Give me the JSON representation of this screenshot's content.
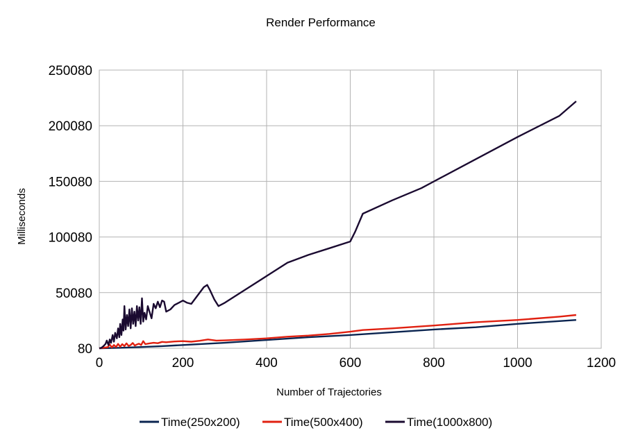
{
  "chart_data": {
    "type": "line",
    "title": "Render Performance",
    "xlabel": "Number of Trajectories",
    "ylabel": "Milliseconds",
    "xlim": [
      0,
      1200
    ],
    "ylim": [
      80,
      250080
    ],
    "xticks": [
      "0",
      "200",
      "400",
      "600",
      "800",
      "1000",
      "1200"
    ],
    "yticks": [
      "80",
      "50080",
      "100080",
      "150080",
      "200080",
      "250080"
    ],
    "grid": true,
    "legend_position": "bottom",
    "series": [
      {
        "name": "Time(250x200)",
        "color": "#0a2450",
        "points": [
          [
            0,
            80
          ],
          [
            50,
            500
          ],
          [
            100,
            1200
          ],
          [
            150,
            2000
          ],
          [
            200,
            3000
          ],
          [
            250,
            4000
          ],
          [
            300,
            5000
          ],
          [
            400,
            7500
          ],
          [
            500,
            10000
          ],
          [
            600,
            12000
          ],
          [
            700,
            14500
          ],
          [
            800,
            17000
          ],
          [
            900,
            19000
          ],
          [
            1000,
            22000
          ],
          [
            1100,
            24500
          ],
          [
            1140,
            25500
          ]
        ]
      },
      {
        "name": "Time(500x400)",
        "color": "#e02010",
        "points": [
          [
            0,
            80
          ],
          [
            20,
            1000
          ],
          [
            25,
            3500
          ],
          [
            30,
            800
          ],
          [
            35,
            3000
          ],
          [
            40,
            1200
          ],
          [
            45,
            4000
          ],
          [
            50,
            1500
          ],
          [
            55,
            3800
          ],
          [
            60,
            2000
          ],
          [
            65,
            4500
          ],
          [
            70,
            2200
          ],
          [
            75,
            3000
          ],
          [
            80,
            4800
          ],
          [
            85,
            2500
          ],
          [
            90,
            3500
          ],
          [
            95,
            4200
          ],
          [
            100,
            3000
          ],
          [
            105,
            6500
          ],
          [
            110,
            3800
          ],
          [
            120,
            4500
          ],
          [
            130,
            5000
          ],
          [
            140,
            4600
          ],
          [
            150,
            5800
          ],
          [
            160,
            5500
          ],
          [
            180,
            6200
          ],
          [
            200,
            6500
          ],
          [
            220,
            6000
          ],
          [
            240,
            6800
          ],
          [
            260,
            8000
          ],
          [
            280,
            7000
          ],
          [
            300,
            7200
          ],
          [
            350,
            8000
          ],
          [
            400,
            9000
          ],
          [
            450,
            10500
          ],
          [
            500,
            11500
          ],
          [
            550,
            13000
          ],
          [
            600,
            15000
          ],
          [
            630,
            16500
          ],
          [
            700,
            18000
          ],
          [
            800,
            20500
          ],
          [
            900,
            23500
          ],
          [
            1000,
            25500
          ],
          [
            1100,
            28500
          ],
          [
            1140,
            30000
          ]
        ]
      },
      {
        "name": "Time(1000x800)",
        "color": "#1a0a30",
        "points": [
          [
            0,
            80
          ],
          [
            5,
            500
          ],
          [
            10,
            2000
          ],
          [
            15,
            4000
          ],
          [
            18,
            7000
          ],
          [
            22,
            3000
          ],
          [
            25,
            8000
          ],
          [
            28,
            5000
          ],
          [
            32,
            12000
          ],
          [
            35,
            6000
          ],
          [
            38,
            14000
          ],
          [
            42,
            9000
          ],
          [
            45,
            18000
          ],
          [
            48,
            10000
          ],
          [
            50,
            22000
          ],
          [
            53,
            12000
          ],
          [
            56,
            26000
          ],
          [
            58,
            16000
          ],
          [
            60,
            38000
          ],
          [
            63,
            17000
          ],
          [
            66,
            30000
          ],
          [
            69,
            20000
          ],
          [
            72,
            35000
          ],
          [
            75,
            18000
          ],
          [
            78,
            36000
          ],
          [
            81,
            22000
          ],
          [
            84,
            33000
          ],
          [
            87,
            20000
          ],
          [
            90,
            38000
          ],
          [
            93,
            25000
          ],
          [
            96,
            37000
          ],
          [
            99,
            22000
          ],
          [
            102,
            45000
          ],
          [
            105,
            24000
          ],
          [
            108,
            32000
          ],
          [
            112,
            26000
          ],
          [
            116,
            38000
          ],
          [
            120,
            33000
          ],
          [
            125,
            27000
          ],
          [
            130,
            40000
          ],
          [
            135,
            36000
          ],
          [
            140,
            42000
          ],
          [
            145,
            37000
          ],
          [
            150,
            43000
          ],
          [
            155,
            42000
          ],
          [
            160,
            33000
          ],
          [
            170,
            35000
          ],
          [
            180,
            39000
          ],
          [
            190,
            41000
          ],
          [
            200,
            43000
          ],
          [
            210,
            41000
          ],
          [
            220,
            40000
          ],
          [
            230,
            45000
          ],
          [
            240,
            50000
          ],
          [
            250,
            55000
          ],
          [
            258,
            57000
          ],
          [
            265,
            52000
          ],
          [
            275,
            44000
          ],
          [
            285,
            38000
          ],
          [
            300,
            41000
          ],
          [
            350,
            53000
          ],
          [
            400,
            65000
          ],
          [
            450,
            77000
          ],
          [
            500,
            84000
          ],
          [
            550,
            90000
          ],
          [
            600,
            96000
          ],
          [
            612,
            105000
          ],
          [
            630,
            121000
          ],
          [
            700,
            133000
          ],
          [
            770,
            144000
          ],
          [
            800,
            150000
          ],
          [
            900,
            170000
          ],
          [
            1000,
            190000
          ],
          [
            1100,
            209000
          ],
          [
            1140,
            222000
          ]
        ]
      }
    ]
  }
}
